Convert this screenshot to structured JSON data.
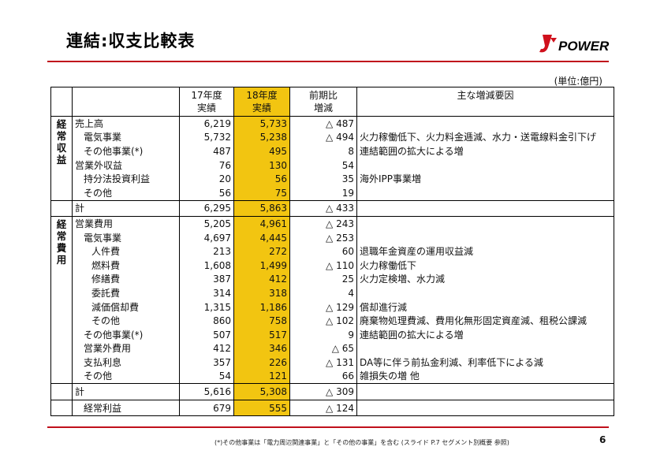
{
  "title": "連結:収支比較表",
  "logo_text": "POWER",
  "unit": "(単位:億円)",
  "columns": {
    "fy17_line1": "17年度",
    "fy17_line2": "実績",
    "fy18_line1": "18年度",
    "fy18_line2": "実績",
    "diff_line1": "前期比",
    "diff_line2": "増減",
    "reason": "主な増減要因"
  },
  "categories": {
    "revenue": [
      "経",
      "常",
      "収",
      "益"
    ],
    "expense": [
      "経",
      "常",
      "費",
      "用"
    ]
  },
  "rows": [
    {
      "label": "売上高",
      "fy17": "6,219",
      "fy18": "5,733",
      "diff": "△ 487",
      "reason": ""
    },
    {
      "label": "電気事業",
      "fy17": "5,732",
      "fy18": "5,238",
      "diff": "△ 494",
      "reason": "火力稼働低下、火力料金逓減、水力・送電線料金引下げ"
    },
    {
      "label": "その他事業(*)",
      "fy17": "487",
      "fy18": "495",
      "diff": "8",
      "reason": "連結範囲の拡大による増"
    },
    {
      "label": "営業外収益",
      "fy17": "76",
      "fy18": "130",
      "diff": "54",
      "reason": ""
    },
    {
      "label": "持分法投資利益",
      "fy17": "20",
      "fy18": "56",
      "diff": "35",
      "reason": "海外IPP事業増"
    },
    {
      "label": "その他",
      "fy17": "56",
      "fy18": "75",
      "diff": "19",
      "reason": ""
    },
    {
      "label": "計",
      "fy17": "6,295",
      "fy18": "5,863",
      "diff": "△ 433",
      "reason": ""
    },
    {
      "label": "営業費用",
      "fy17": "5,205",
      "fy18": "4,961",
      "diff": "△ 243",
      "reason": ""
    },
    {
      "label": "電気事業",
      "fy17": "4,697",
      "fy18": "4,445",
      "diff": "△ 253",
      "reason": ""
    },
    {
      "label": "人件費",
      "fy17": "213",
      "fy18": "272",
      "diff": "60",
      "reason": "退職年金資産の運用収益減"
    },
    {
      "label": "燃料費",
      "fy17": "1,608",
      "fy18": "1,499",
      "diff": "△ 110",
      "reason": "火力稼働低下"
    },
    {
      "label": "修繕費",
      "fy17": "387",
      "fy18": "412",
      "diff": "25",
      "reason": "火力定検増、水力減"
    },
    {
      "label": "委託費",
      "fy17": "314",
      "fy18": "318",
      "diff": "4",
      "reason": ""
    },
    {
      "label": "減価償却費",
      "fy17": "1,315",
      "fy18": "1,186",
      "diff": "△ 129",
      "reason": "償却進行減"
    },
    {
      "label": "その他",
      "fy17": "860",
      "fy18": "758",
      "diff": "△ 102",
      "reason": "廃棄物処理費減、費用化無形固定資産減、租税公課減"
    },
    {
      "label": "その他事業(*)",
      "fy17": "507",
      "fy18": "517",
      "diff": "9",
      "reason": "連結範囲の拡大による増"
    },
    {
      "label": "営業外費用",
      "fy17": "412",
      "fy18": "346",
      "diff": "△ 65",
      "reason": ""
    },
    {
      "label": "支払利息",
      "fy17": "357",
      "fy18": "226",
      "diff": "△ 131",
      "reason": "DA等に伴う前払金利減、利率低下による減"
    },
    {
      "label": "その他",
      "fy17": "54",
      "fy18": "121",
      "diff": "66",
      "reason": "雑損失の増 他"
    },
    {
      "label": "計",
      "fy17": "5,616",
      "fy18": "5,308",
      "diff": "△ 309",
      "reason": ""
    },
    {
      "label": "経常利益",
      "fy17": "679",
      "fy18": "555",
      "diff": "△ 124",
      "reason": ""
    }
  ],
  "footnote": "(*)その他事業は「電力周辺関連事業」と「その他の事業」を含む (スライド P.7 セグメント別概要 参照)",
  "page_number": "6",
  "colors": {
    "accent_red": "#c0101c",
    "highlight_yellow": "#f2c511"
  }
}
